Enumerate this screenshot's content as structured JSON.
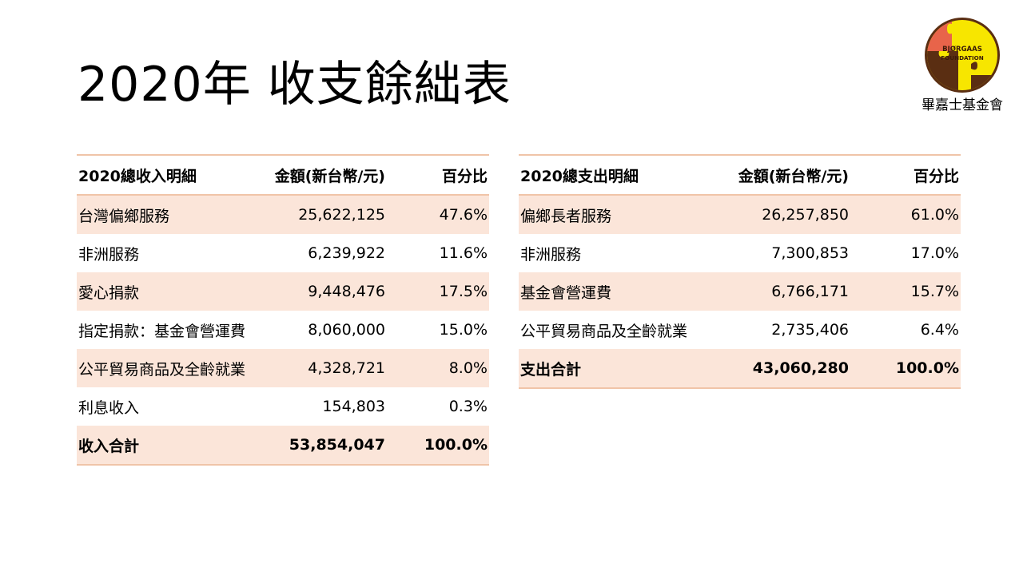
{
  "slide": {
    "title": "2020年 收支餘絀表"
  },
  "logo": {
    "text_line1": "BJØRGAAS",
    "text_line2": "FOUNDATION",
    "caption": "畢嘉士基金會",
    "colors": {
      "red": "#e8644a",
      "yellow": "#f7e600",
      "brown": "#5a2e12"
    }
  },
  "income": {
    "headers": [
      "2020總收入明細",
      "金額(新台幣/元)",
      "百分比"
    ],
    "rows": [
      {
        "label": "台灣偏鄉服務",
        "amount": "25,622,125",
        "pct": "47.6%"
      },
      {
        "label": "非洲服務",
        "amount": "6,239,922",
        "pct": "11.6%"
      },
      {
        "label": "愛心捐款",
        "amount": "9,448,476",
        "pct": "17.5%"
      },
      {
        "label": "指定捐款：基金會營運費",
        "amount": "8,060,000",
        "pct": "15.0%"
      },
      {
        "label": "公平貿易商品及全齡就業",
        "amount": "4,328,721",
        "pct": "8.0%"
      },
      {
        "label": "利息收入",
        "amount": "154,803",
        "pct": "0.3%"
      }
    ],
    "total": {
      "label": "收入合計",
      "amount": "53,854,047",
      "pct": "100.0%"
    }
  },
  "expense": {
    "headers": [
      "2020總支出明細",
      "金額(新台幣/元)",
      "百分比"
    ],
    "rows": [
      {
        "label": "偏鄉長者服務",
        "amount": "26,257,850",
        "pct": "61.0%"
      },
      {
        "label": "非洲服務",
        "amount": "7,300,853",
        "pct": "17.0%"
      },
      {
        "label": "基金會營運費",
        "amount": "6,766,171",
        "pct": "15.7%"
      },
      {
        "label": "公平貿易商品及全齡就業",
        "amount": "2,735,406",
        "pct": "6.4%"
      }
    ],
    "total": {
      "label": "支出合計",
      "amount": "43,060,280",
      "pct": "100.0%"
    }
  },
  "colors": {
    "band": "#fbe5d9",
    "rule": "#f0c4a8"
  }
}
